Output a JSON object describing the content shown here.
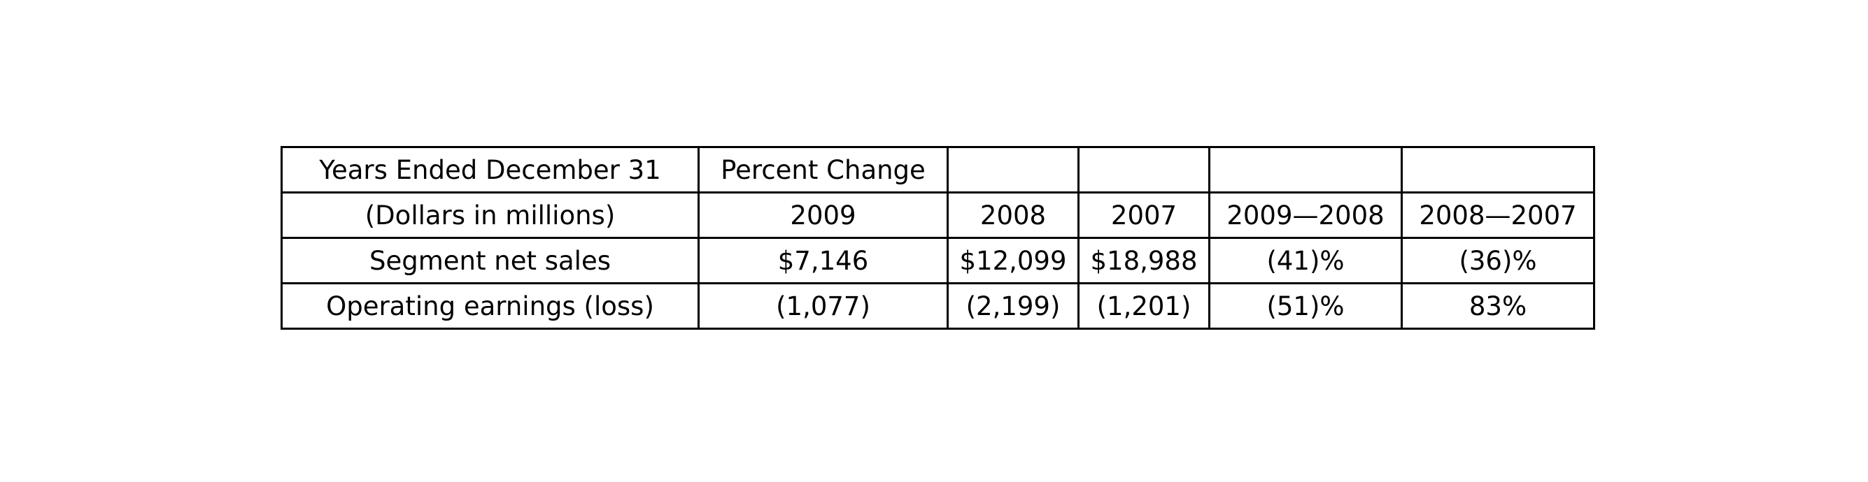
{
  "chart_data": {
    "type": "table",
    "rows": [
      [
        "Years Ended December 31",
        "Percent Change",
        "",
        "",
        "",
        ""
      ],
      [
        "(Dollars in millions)",
        "2009",
        "2008",
        "2007",
        "2009—2008",
        "2008—2007"
      ],
      [
        "Segment net sales",
        "$7,146",
        "$12,099",
        "$18,988",
        "(41)%",
        "(36)%"
      ],
      [
        "Operating earnings (loss)",
        "(1,077)",
        "(2,199)",
        "(1,201)",
        "(51)%",
        "83%"
      ]
    ]
  }
}
